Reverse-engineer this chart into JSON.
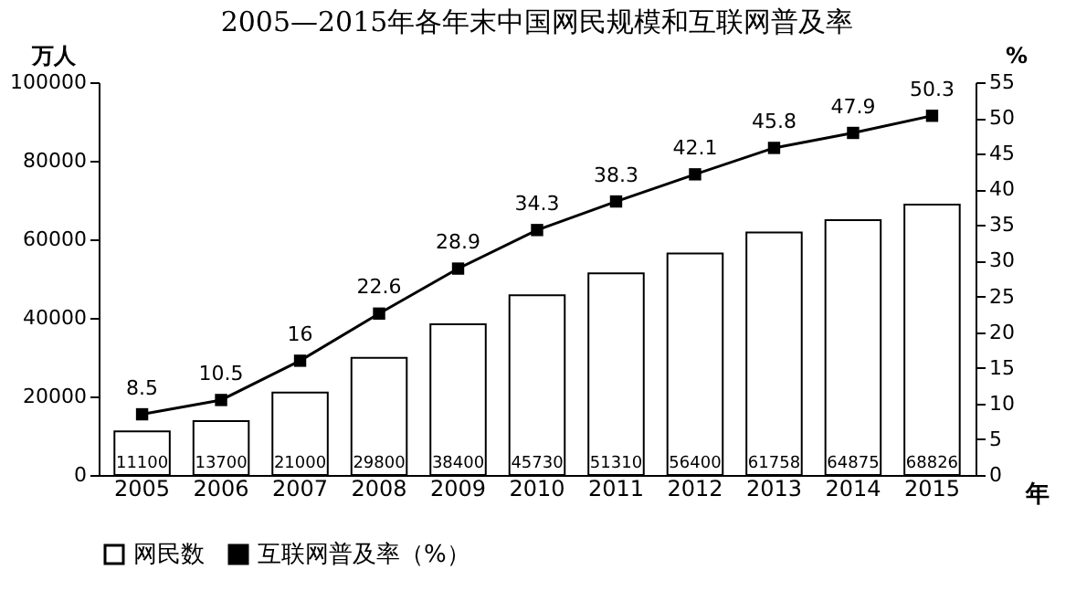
{
  "chart_data": {
    "type": "bar",
    "title": "2005—2015年各年末中国网民规模和互联网普及率",
    "xlabel": "年",
    "ylabel": "万人",
    "y2label": "%",
    "categories": [
      "2005",
      "2006",
      "2007",
      "2008",
      "2009",
      "2010",
      "2011",
      "2012",
      "2013",
      "2014",
      "2015"
    ],
    "series": [
      {
        "name": "网民数",
        "color": "#ffffff",
        "values": [
          11100,
          13700,
          21000,
          29800,
          38400,
          45730,
          51310,
          56400,
          61758,
          64875,
          68826
        ]
      },
      {
        "name": "互联网普及率（%）",
        "type": "line",
        "axis": "y2",
        "color": "#000000",
        "marker": "square",
        "values": [
          8.5,
          10.5,
          16,
          22.6,
          28.9,
          34.3,
          38.3,
          42.1,
          45.8,
          47.9,
          50.3
        ]
      }
    ],
    "ylim": [
      0,
      100000
    ],
    "yticks": [
      0,
      20000,
      40000,
      60000,
      80000,
      100000
    ],
    "y2lim": [
      0,
      55
    ],
    "y2ticks": [
      0,
      5,
      10,
      15,
      20,
      25,
      30,
      35,
      40,
      45,
      50,
      55
    ],
    "data_labels": true,
    "legend": "bottom",
    "grid": false
  }
}
